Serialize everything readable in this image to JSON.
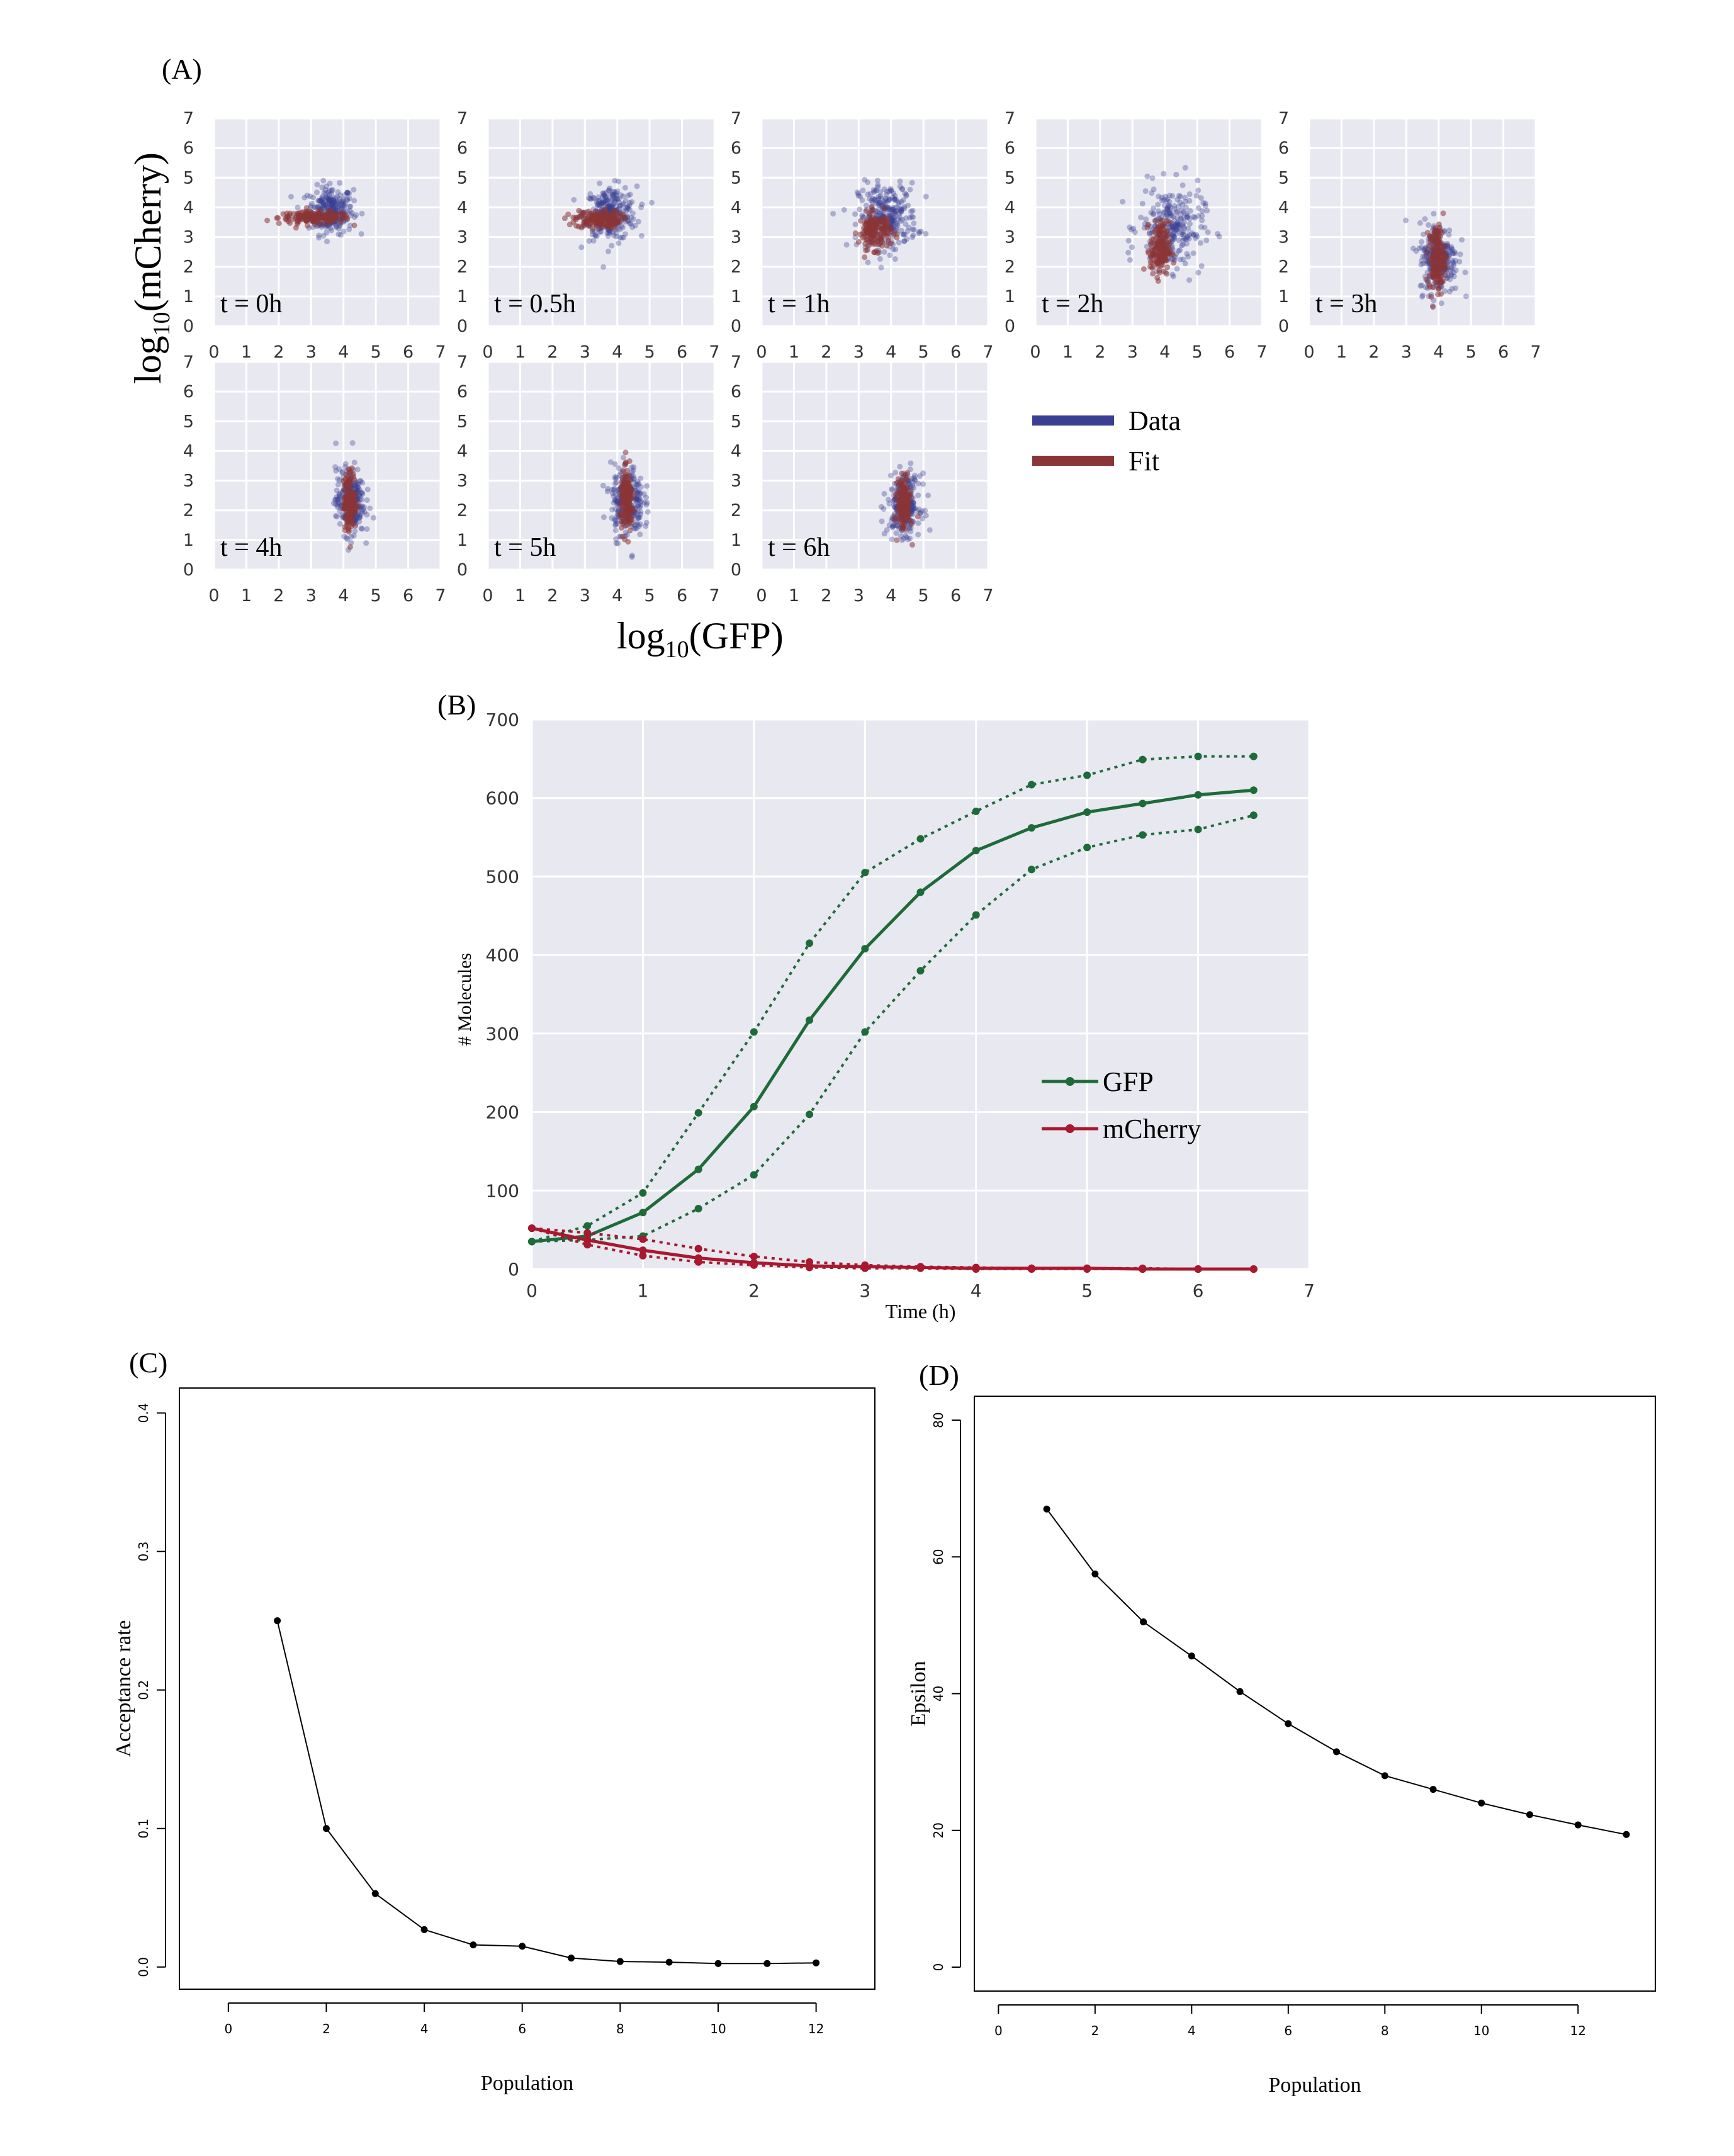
{
  "panel_labels": {
    "a": "(A)",
    "b": "(B)",
    "c": "(C)",
    "d": "(D)"
  },
  "colors": {
    "data": "#3a3f93",
    "fit": "#8a3537",
    "gfp": "#1e6b3a",
    "mcherry": "#a8182e",
    "grid_bg": "#e8e8f0",
    "grid_line": "#ffffff",
    "line_black": "#000000"
  },
  "chart_data": [
    {
      "id": "A",
      "type": "scatter",
      "xlabel": "log10(GFP)",
      "ylabel": "log10(mCherry)",
      "xlim": [
        0,
        7
      ],
      "ylim": [
        0,
        7
      ],
      "ticks": [
        "0",
        "1",
        "2",
        "3",
        "4",
        "5",
        "6",
        "7"
      ],
      "grid": true,
      "legend": {
        "placement": "right of bottom row",
        "entries": [
          "Data",
          "Fit"
        ]
      },
      "series_names": [
        "Data",
        "Fit"
      ],
      "subplots": [
        {
          "label": "t = 0h",
          "data_center": [
            3.6,
            3.9
          ],
          "data_spread": [
            0.35,
            0.4
          ],
          "fit_center": [
            3.1,
            3.65
          ],
          "fit_spread": [
            0.55,
            0.1
          ]
        },
        {
          "label": "t = 0.5h",
          "data_center": [
            3.8,
            3.8
          ],
          "data_spread": [
            0.4,
            0.45
          ],
          "fit_center": [
            3.4,
            3.6
          ],
          "fit_spread": [
            0.35,
            0.15
          ]
        },
        {
          "label": "t = 1h",
          "data_center": [
            3.9,
            3.7
          ],
          "data_spread": [
            0.45,
            0.55
          ],
          "fit_center": [
            3.5,
            3.2
          ],
          "fit_spread": [
            0.25,
            0.3
          ]
        },
        {
          "label": "t = 2h",
          "data_center": [
            4.2,
            3.3
          ],
          "data_spread": [
            0.5,
            0.7
          ],
          "fit_center": [
            3.85,
            2.6
          ],
          "fit_spread": [
            0.15,
            0.45
          ]
        },
        {
          "label": "t = 3h",
          "data_center": [
            4.0,
            2.3
          ],
          "data_spread": [
            0.3,
            0.6
          ],
          "fit_center": [
            3.95,
            2.3
          ],
          "fit_spread": [
            0.12,
            0.55
          ]
        },
        {
          "label": "t = 4h",
          "data_center": [
            4.2,
            2.3
          ],
          "data_spread": [
            0.22,
            0.55
          ],
          "fit_center": [
            4.2,
            2.3
          ],
          "fit_spread": [
            0.1,
            0.5
          ]
        },
        {
          "label": "t = 5h",
          "data_center": [
            4.3,
            2.3
          ],
          "data_spread": [
            0.25,
            0.6
          ],
          "fit_center": [
            4.3,
            2.3
          ],
          "fit_spread": [
            0.1,
            0.5
          ]
        },
        {
          "label": "t = 6h",
          "data_center": [
            4.4,
            2.2
          ],
          "data_spread": [
            0.25,
            0.5
          ],
          "fit_center": [
            4.4,
            2.2
          ],
          "fit_spread": [
            0.1,
            0.45
          ]
        }
      ]
    },
    {
      "id": "B",
      "type": "line",
      "xlabel": "Time (h)",
      "ylabel": "# Molecules",
      "xlim": [
        0,
        7
      ],
      "ylim": [
        0,
        700
      ],
      "xticks": [
        "0",
        "1",
        "2",
        "3",
        "4",
        "5",
        "6",
        "7"
      ],
      "yticks": [
        "0",
        "100",
        "200",
        "300",
        "400",
        "500",
        "600",
        "700"
      ],
      "grid": true,
      "legend": {
        "placement": "center-right",
        "entries": [
          "GFP",
          "mCherry"
        ]
      },
      "x": [
        0,
        0.5,
        1,
        1.5,
        2,
        2.5,
        3,
        3.5,
        4,
        4.5,
        5,
        5.5,
        6,
        6.5
      ],
      "series": [
        {
          "name": "GFP",
          "color": "#1e6b3a",
          "style": "solid",
          "values": [
            35,
            42,
            72,
            127,
            207,
            317,
            408,
            480,
            533,
            562,
            582,
            593,
            604,
            610
          ]
        },
        {
          "color": "#1e6b3a",
          "style": "dotted",
          "values": [
            35,
            55,
            97,
            199,
            302,
            415,
            505,
            548,
            583,
            617,
            629,
            649,
            653,
            653
          ]
        },
        {
          "color": "#1e6b3a",
          "style": "dotted",
          "values": [
            35,
            37,
            42,
            77,
            120,
            197,
            302,
            380,
            451,
            509,
            537,
            553,
            560,
            578
          ]
        },
        {
          "name": "mCherry",
          "color": "#a8182e",
          "style": "solid",
          "values": [
            52,
            37,
            24,
            14,
            8,
            4,
            3,
            2,
            1,
            1,
            1,
            0,
            0,
            0
          ]
        },
        {
          "color": "#a8182e",
          "style": "dotted",
          "values": [
            52,
            46,
            38,
            26,
            16,
            9,
            5,
            3,
            2,
            1,
            1,
            1,
            0,
            0
          ]
        },
        {
          "color": "#a8182e",
          "style": "dotted",
          "values": [
            52,
            31,
            17,
            9,
            5,
            2,
            1,
            1,
            0,
            0,
            0,
            0,
            0,
            0
          ]
        }
      ]
    },
    {
      "id": "C",
      "type": "line",
      "xlabel": "Population",
      "ylabel": "Acceptance rate",
      "xlim": [
        0,
        12
      ],
      "ylim": [
        0,
        0.4
      ],
      "xticks": [
        "0",
        "2",
        "4",
        "6",
        "8",
        "10",
        "12"
      ],
      "yticks": [
        "0.0",
        "0.1",
        "0.2",
        "0.3",
        "0.4"
      ],
      "grid": false,
      "x": [
        1,
        2,
        3,
        4,
        5,
        6,
        7,
        8,
        9,
        10,
        11,
        12
      ],
      "values": [
        0.25,
        0.1,
        0.053,
        0.027,
        0.016,
        0.015,
        0.0065,
        0.004,
        0.0035,
        0.0025,
        0.0025,
        0.003
      ]
    },
    {
      "id": "D",
      "type": "line",
      "xlabel": "Population",
      "ylabel": "Epsilon",
      "xlim": [
        0,
        13
      ],
      "ylim": [
        0,
        80
      ],
      "xticks": [
        "0",
        "2",
        "4",
        "6",
        "8",
        "10",
        "12"
      ],
      "yticks": [
        "0",
        "20",
        "40",
        "60",
        "80"
      ],
      "grid": false,
      "x": [
        1,
        2,
        3,
        4,
        5,
        6,
        7,
        8,
        9,
        10,
        11,
        12,
        13
      ],
      "values": [
        67,
        57.5,
        50.5,
        45.5,
        40.3,
        35.6,
        31.5,
        28,
        26,
        24,
        22.3,
        20.8,
        19.4
      ]
    }
  ]
}
